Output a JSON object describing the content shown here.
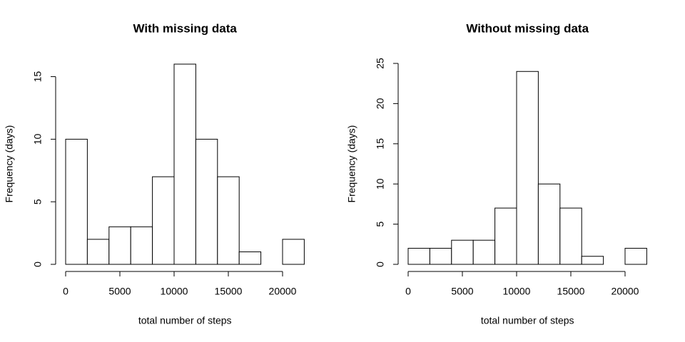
{
  "chart_data": [
    {
      "type": "histogram",
      "title": "With missing data",
      "xlabel": "total number of steps",
      "ylabel": "Frequency (days)",
      "bins": [
        0,
        2000,
        4000,
        6000,
        8000,
        10000,
        12000,
        14000,
        16000,
        18000,
        20000,
        22000
      ],
      "values": [
        10,
        2,
        3,
        3,
        7,
        16,
        10,
        7,
        1,
        0,
        2
      ],
      "xlim": [
        0,
        22000
      ],
      "xticks": [
        0,
        5000,
        10000,
        15000,
        20000
      ],
      "ylim": [
        0,
        16
      ],
      "yticks": [
        0,
        5,
        10,
        15
      ]
    },
    {
      "type": "histogram",
      "title": "Without missing data",
      "xlabel": "total number of steps",
      "ylabel": "Frequency (days)",
      "bins": [
        0,
        2000,
        4000,
        6000,
        8000,
        10000,
        12000,
        14000,
        16000,
        18000,
        20000,
        22000
      ],
      "values": [
        2,
        2,
        3,
        3,
        7,
        24,
        10,
        7,
        1,
        0,
        2
      ],
      "xlim": [
        0,
        22000
      ],
      "xticks": [
        0,
        5000,
        10000,
        15000,
        20000
      ],
      "ylim": [
        0,
        25
      ],
      "yticks": [
        0,
        5,
        10,
        15,
        20,
        25
      ]
    }
  ]
}
